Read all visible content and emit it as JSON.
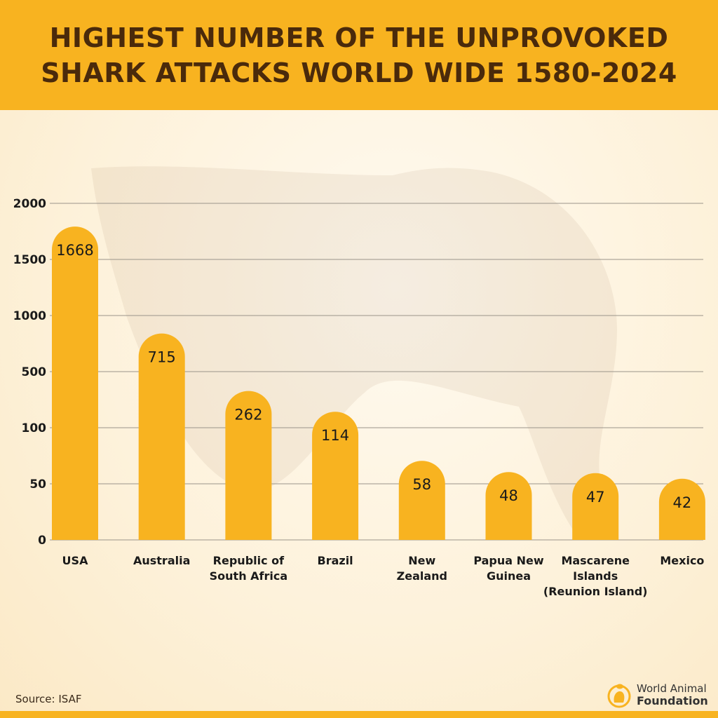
{
  "header": {
    "title": "HIGHEST NUMBER OF THE UNPROVOKED SHARK ATTACKS WORLD WIDE 1580-2024"
  },
  "chart_data": {
    "type": "bar",
    "title": "HIGHEST NUMBER OF THE UNPROVOKED SHARK ATTACKS WORLD WIDE 1580-2024",
    "categories": [
      "USA",
      "Australia",
      "Republic of South Africa",
      "Brazil",
      "New Zealand",
      "Papua New Guinea",
      "Mascarene Islands (Reunion Island)",
      "Mexico"
    ],
    "category_lines": [
      [
        "USA"
      ],
      [
        "Australia"
      ],
      [
        "Republic of",
        "South Africa"
      ],
      [
        "Brazil"
      ],
      [
        "New",
        "Zealand"
      ],
      [
        "Papua New",
        "Guinea"
      ],
      [
        "Mascarene",
        "Islands",
        "(Reunion Island)"
      ],
      [
        "Mexico"
      ]
    ],
    "values": [
      1668,
      715,
      262,
      114,
      58,
      48,
      47,
      42
    ],
    "yticks": [
      0,
      50,
      100,
      500,
      1000,
      1500,
      2000
    ],
    "ylim": [
      0,
      2000
    ],
    "y_scale": "non-uniform (ticks evenly spaced)",
    "grid": true,
    "xlabel": "",
    "ylabel": "",
    "bar_color": "#f8b320"
  },
  "footer": {
    "source": "Source: ISAF",
    "logo_line1": "World Animal",
    "logo_line2": "Foundation"
  },
  "colors": {
    "header_bg": "#f8b320",
    "title": "#4a2a0b",
    "bar": "#f8b320",
    "grid": "#9a948a"
  }
}
